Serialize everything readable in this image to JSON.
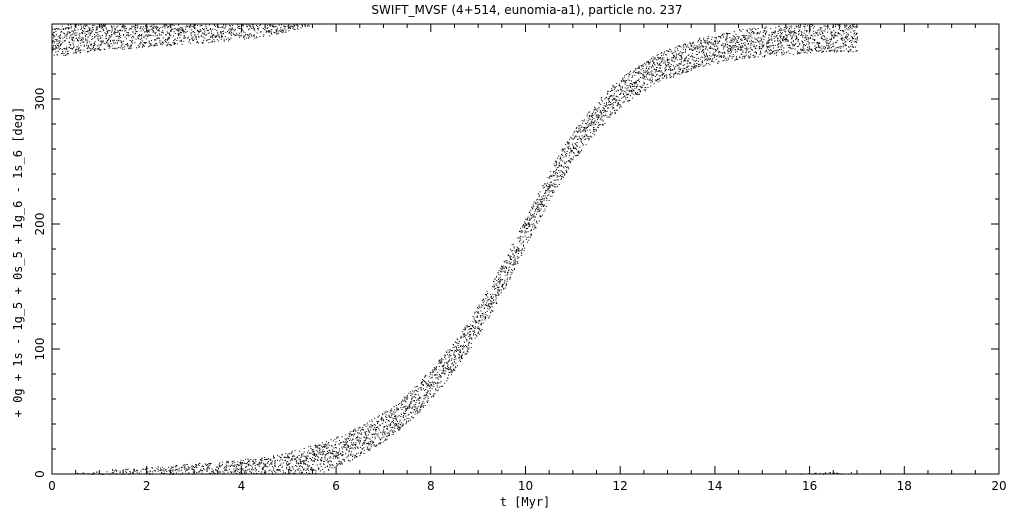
{
  "chart_data": {
    "type": "scatter",
    "title": "SWIFT_MVSF (4+514, eunomia-a1), particle no. 237",
    "xlabel": "t [Myr]",
    "ylabel": "+ 0g + 1s - 1g_5 + 0s_5 + 1g_6 - 1s_6 [deg]",
    "xlim": [
      0,
      20
    ],
    "ylim": [
      0,
      360
    ],
    "x_ticks": [
      0,
      2,
      4,
      6,
      8,
      10,
      12,
      14,
      16,
      18,
      20
    ],
    "y_ticks": [
      0,
      100,
      200,
      300
    ],
    "grid": false,
    "marker": "dot",
    "series": [
      {
        "x": [
          0.0,
          0.25,
          0.5,
          0.75,
          1.0,
          1.25,
          1.5,
          1.75,
          2.0,
          2.25,
          2.5,
          2.75,
          3.0,
          3.25,
          3.5,
          3.75,
          4.0,
          4.25,
          4.5,
          4.75,
          5.0,
          5.25,
          5.5,
          5.75,
          6.0,
          6.25,
          6.5,
          6.75,
          7.0,
          7.25,
          7.5,
          7.75,
          8.0,
          8.25,
          8.5,
          8.75,
          9.0,
          9.25,
          9.5,
          9.75,
          10.0,
          10.25,
          10.5,
          10.75,
          11.0,
          11.25,
          11.5,
          11.75,
          12.0,
          12.25,
          12.5,
          12.75,
          13.0,
          13.25,
          13.5,
          13.75,
          14.0,
          14.25,
          14.5,
          14.75,
          15.0,
          15.25,
          15.5,
          15.75,
          16.0,
          16.25,
          16.5,
          16.75,
          17.0
        ],
        "y": [
          346,
          347,
          349,
          350,
          351,
          352,
          352,
          353,
          354,
          355,
          355,
          356,
          357,
          357,
          358,
          359,
          360,
          1,
          2,
          4,
          6,
          9,
          11,
          14,
          18,
          22,
          27,
          32,
          38,
          45,
          53,
          62,
          72,
          83,
          95,
          108,
          123,
          139,
          156,
          175,
          194,
          212,
          230,
          247,
          262,
          275,
          286,
          296,
          305,
          312,
          318,
          324,
          328,
          332,
          335,
          338,
          340,
          342,
          344,
          345,
          346,
          347,
          348,
          348,
          349,
          349,
          350,
          350,
          350
        ]
      }
    ]
  }
}
